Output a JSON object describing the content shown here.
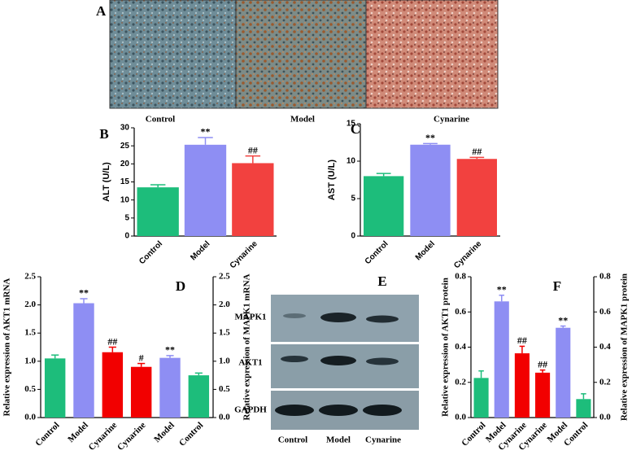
{
  "image_panel": {
    "label": "A",
    "captions": [
      "Control",
      "Model",
      "Cynarine"
    ]
  },
  "blot_panel": {
    "label": "E",
    "rows": [
      "MAPK1",
      "AKT1",
      "GAPDH"
    ],
    "lanes": [
      "Control",
      "Model",
      "Cynarine"
    ]
  },
  "chart_data": [
    {
      "type": "bar",
      "panel_label": "B",
      "ylabel": "ALT (U/L)",
      "categories": [
        "Control",
        "Model",
        "Cynarine"
      ],
      "colors": [
        "#1dbd7b",
        "#8e8ef3",
        "#f2413f"
      ],
      "series": [
        {
          "values": [
            13.5,
            25.3,
            20.2
          ],
          "errors": [
            0.7,
            2.0,
            2.0
          ]
        }
      ],
      "annotations": [
        null,
        "**",
        "##"
      ],
      "ylim": [
        0,
        30
      ],
      "yticks": [
        0,
        5,
        10,
        15,
        20,
        25,
        30
      ]
    },
    {
      "type": "bar",
      "panel_label": "C",
      "ylabel": "AST (U/L)",
      "categories": [
        "Control",
        "Model",
        "Cynarine"
      ],
      "colors": [
        "#1dbd7b",
        "#8e8ef3",
        "#f2413f"
      ],
      "series": [
        {
          "values": [
            8.0,
            12.2,
            10.3
          ],
          "errors": [
            0.35,
            0.15,
            0.2
          ]
        }
      ],
      "annotations": [
        null,
        "**",
        "##"
      ],
      "ylim": [
        0,
        15
      ],
      "yticks": [
        0,
        5,
        10,
        15
      ]
    },
    {
      "type": "bar",
      "panel_label": "D",
      "ylabel": "Relative expression of AKT1 mRNA",
      "y2label": "Relative expression of MAPK1 mRNA",
      "categories": [
        "Control",
        "Model",
        "Cynarine",
        "Cynarine",
        "Model",
        "Control"
      ],
      "colors": [
        "#1dbd7b",
        "#8e8ef3",
        "#f20000",
        "#f20000",
        "#8e8ef3",
        "#1dbd7b"
      ],
      "series": [
        {
          "values": [
            1.05,
            2.03,
            1.16,
            null,
            null,
            null
          ],
          "errors": [
            0.06,
            0.08,
            0.09,
            null,
            null,
            null
          ]
        },
        {
          "axis": "y2",
          "values": [
            null,
            null,
            null,
            0.9,
            1.06,
            0.75
          ],
          "errors": [
            null,
            null,
            null,
            0.06,
            0.04,
            0.04
          ]
        }
      ],
      "annotations": [
        null,
        "**",
        "##",
        "#",
        "**",
        null
      ],
      "ylim": [
        0,
        2.5
      ],
      "yticks": [
        {
          "value": 0,
          "label": "0.0"
        },
        0.5,
        {
          "value": 1,
          "label": "1.0"
        },
        1.5,
        {
          "value": 2,
          "label": "2.0"
        },
        2.5
      ],
      "y2lim": [
        0,
        2.5
      ],
      "y2ticks": [
        {
          "value": 0,
          "label": "0.0"
        },
        0.5,
        {
          "value": 1,
          "label": "1.0"
        },
        1.5,
        {
          "value": 2,
          "label": "2.0"
        },
        2.5
      ]
    },
    {
      "type": "bar",
      "panel_label": "F",
      "ylabel": "Relative expression of AKT1 protein",
      "y2label": "Relative expression of MAPK1 protein",
      "categories": [
        "Control",
        "Model",
        "Cynarine",
        "Cynarine",
        "Model",
        "Control"
      ],
      "colors": [
        "#1dbd7b",
        "#8e8ef3",
        "#f20000",
        "#f20000",
        "#8e8ef3",
        "#1dbd7b"
      ],
      "series": [
        {
          "values": [
            0.225,
            0.66,
            0.365,
            null,
            null,
            null
          ],
          "errors": [
            0.04,
            0.035,
            0.04,
            null,
            null,
            null
          ]
        },
        {
          "axis": "y2",
          "values": [
            null,
            null,
            null,
            0.255,
            0.51,
            0.105
          ],
          "errors": [
            null,
            null,
            null,
            0.015,
            0.01,
            0.03
          ]
        }
      ],
      "annotations": [
        null,
        "**",
        "##",
        "##",
        "**",
        null
      ],
      "ylim": [
        0,
        0.8
      ],
      "yticks": [
        {
          "value": 0,
          "label": "0.0"
        },
        0.2,
        0.4,
        0.6,
        0.8
      ],
      "y2lim": [
        0,
        0.8
      ],
      "y2ticks": [
        {
          "value": 0,
          "label": "0.0"
        },
        0.2,
        0.4,
        0.6,
        0.8
      ]
    }
  ]
}
